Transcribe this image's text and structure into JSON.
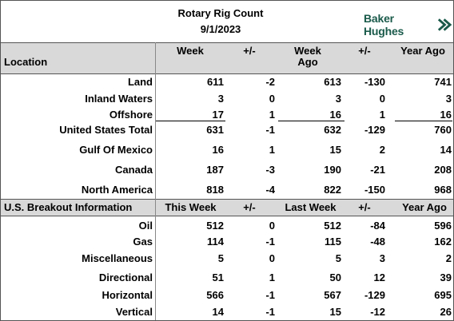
{
  "title": "Rotary Rig Count",
  "date": "9/1/2023",
  "logo": {
    "text": "Baker Hughes",
    "icon": "chevron-icon",
    "color": "#1a5a4a"
  },
  "section1": {
    "location_header": "Location",
    "columns": [
      "Week",
      "+/-",
      "Week Ago",
      "+/-",
      "Year Ago"
    ],
    "rows": [
      {
        "label": "Land",
        "values": [
          "611",
          "-2",
          "613",
          "-130",
          "741"
        ]
      },
      {
        "label": "Inland Waters",
        "values": [
          "3",
          "0",
          "3",
          "0",
          "3"
        ]
      },
      {
        "label": "Offshore",
        "values": [
          "17",
          "1",
          "16",
          "1",
          "16"
        ]
      },
      {
        "label": "United States Total",
        "values": [
          "631",
          "-1",
          "632",
          "-129",
          "760"
        ]
      },
      {
        "label": "Gulf Of Mexico",
        "values": [
          "16",
          "1",
          "15",
          "2",
          "14"
        ]
      },
      {
        "label": "Canada",
        "values": [
          "187",
          "-3",
          "190",
          "-21",
          "208"
        ]
      },
      {
        "label": "North America",
        "values": [
          "818",
          "-4",
          "822",
          "-150",
          "968"
        ]
      }
    ]
  },
  "section2": {
    "header": "U.S. Breakout Information",
    "columns": [
      "This Week",
      "+/-",
      "Last Week",
      "+/-",
      "Year Ago"
    ],
    "rows": [
      {
        "label": "Oil",
        "values": [
          "512",
          "0",
          "512",
          "-84",
          "596"
        ]
      },
      {
        "label": "Gas",
        "values": [
          "114",
          "-1",
          "115",
          "-48",
          "162"
        ]
      },
      {
        "label": "Miscellaneous",
        "values": [
          "5",
          "0",
          "5",
          "3",
          "2"
        ]
      },
      {
        "label": "Directional",
        "values": [
          "51",
          "1",
          "50",
          "12",
          "39"
        ]
      },
      {
        "label": "Horizontal",
        "values": [
          "566",
          "-1",
          "567",
          "-129",
          "695"
        ]
      },
      {
        "label": "Vertical",
        "values": [
          "14",
          "-1",
          "15",
          "-12",
          "26"
        ]
      }
    ]
  }
}
